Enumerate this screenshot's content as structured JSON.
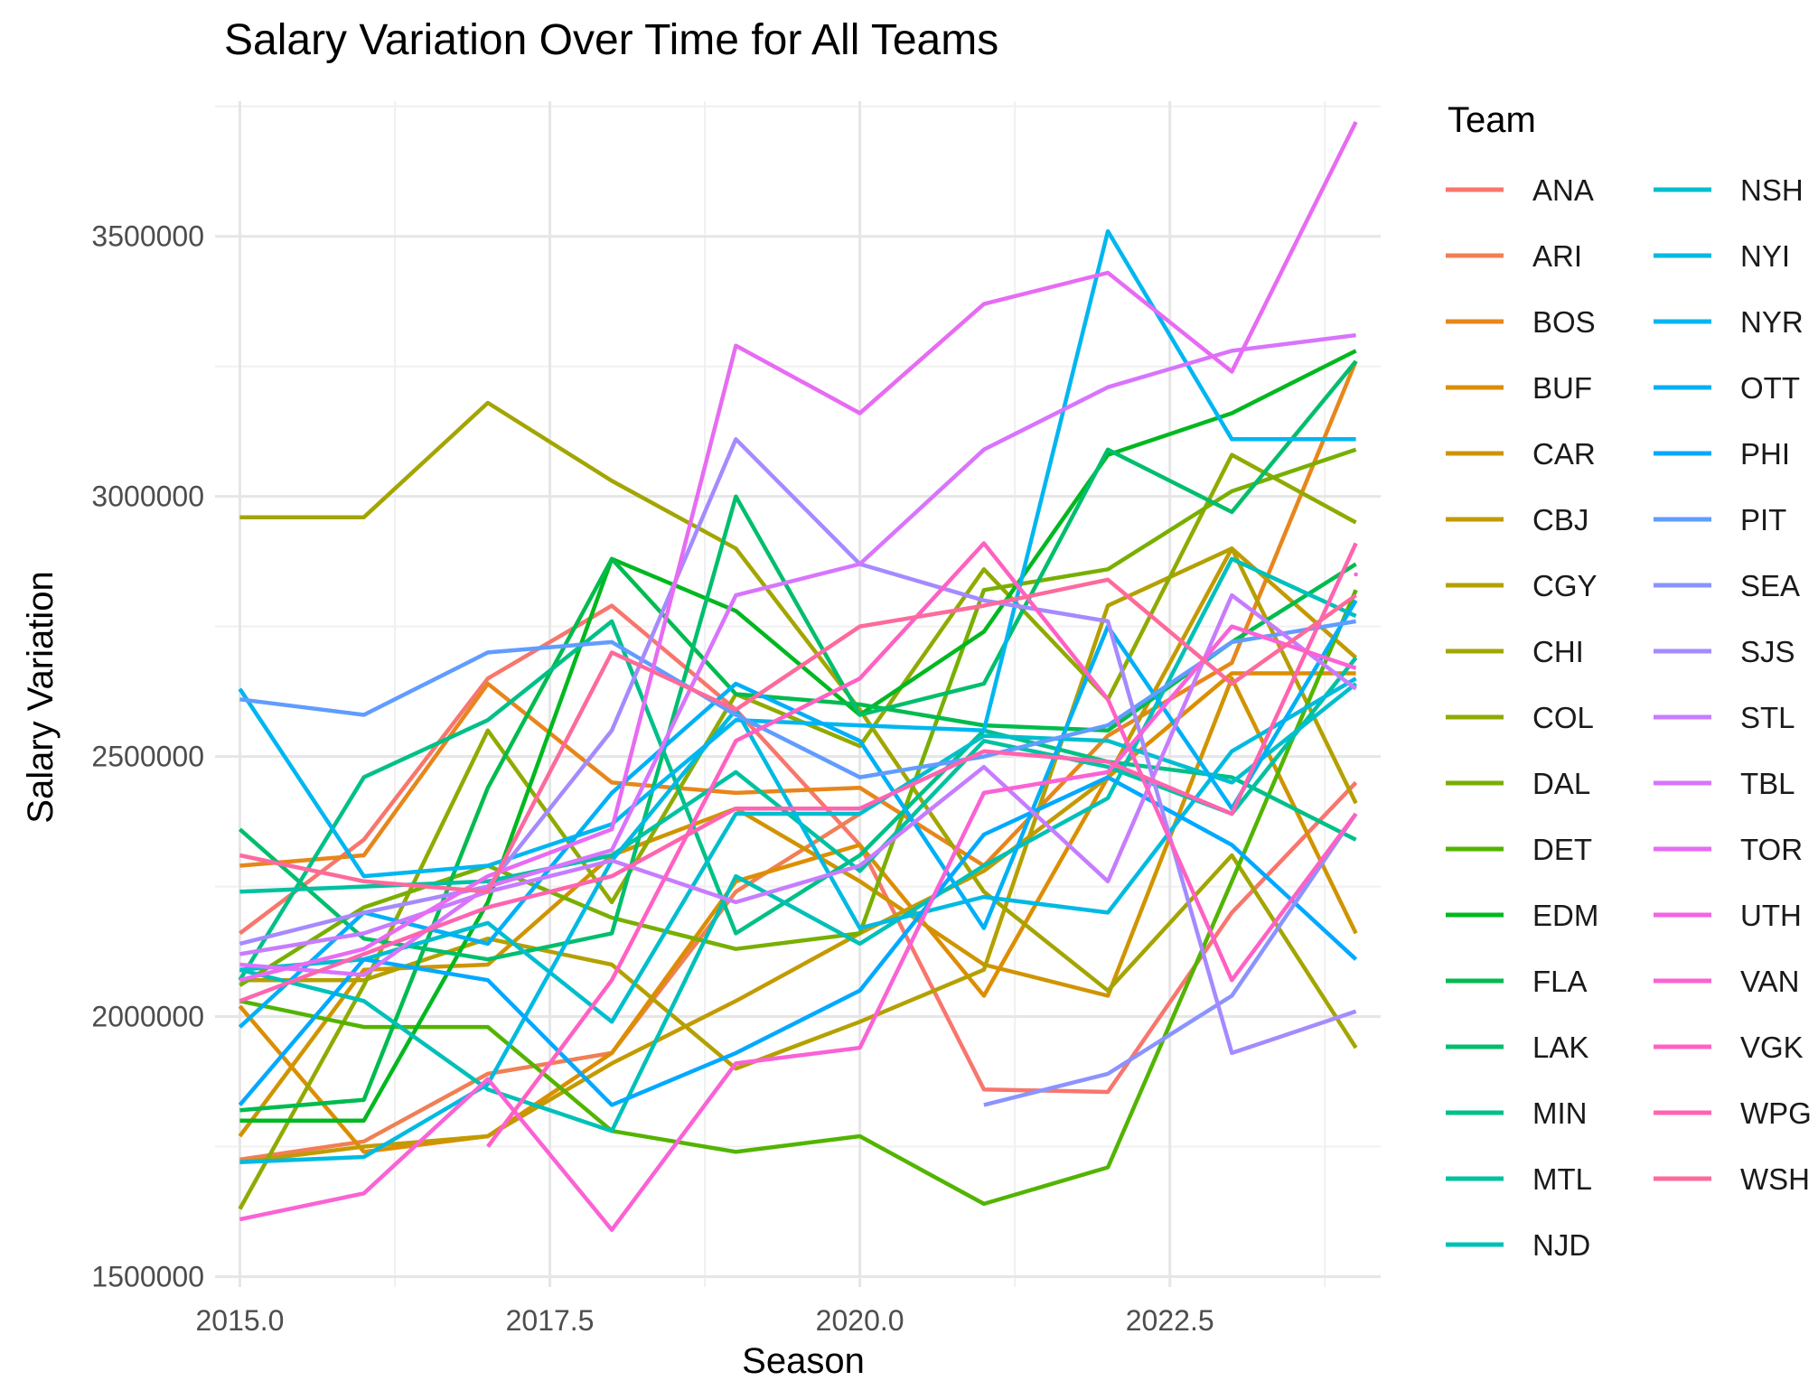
{
  "chart_data": {
    "type": "line",
    "title": "Salary Variation Over Time for All Teams",
    "xlabel": "Season",
    "ylabel": "Salary Variation",
    "xlim": [
      2014.8,
      2024.2
    ],
    "ylim": [
      1480000,
      3760000
    ],
    "x_ticks": [
      "2015.0",
      "2017.5",
      "2020.0",
      "2022.5"
    ],
    "x_tick_values": [
      2015.0,
      2017.5,
      2020.0,
      2022.5
    ],
    "y_ticks": [
      "1500000",
      "2000000",
      "2500000",
      "3000000",
      "3500000"
    ],
    "y_tick_values": [
      1500000,
      2000000,
      2500000,
      3000000,
      3500000
    ],
    "grid": true,
    "legend_title": "Team",
    "legend_position": "right",
    "x": [
      2015,
      2016,
      2017,
      2018,
      2019,
      2020,
      2021,
      2022,
      2023,
      2024
    ],
    "series": [
      {
        "name": "ANA",
        "color": "#F8766D",
        "values": [
          2160000,
          2340000,
          2650000,
          2790000,
          2590000,
          2330000,
          1860000,
          1855000,
          2200000,
          2450000
        ]
      },
      {
        "name": "ARI",
        "color": "#F07F54",
        "values": [
          1725000,
          1760000,
          1890000,
          1930000,
          2240000,
          2390000,
          null,
          null,
          null,
          null
        ]
      },
      {
        "name": "BOS",
        "color": "#E7861B",
        "values": [
          2290000,
          2310000,
          2640000,
          2450000,
          2430000,
          2440000,
          2290000,
          2540000,
          2680000,
          3260000
        ]
      },
      {
        "name": "BUF",
        "color": "#DC8E00",
        "values": [
          2020000,
          1740000,
          1770000,
          1930000,
          2260000,
          2330000,
          2040000,
          2460000,
          2660000,
          2660000
        ]
      },
      {
        "name": "CAR",
        "color": "#D09400",
        "values": [
          1770000,
          2090000,
          2100000,
          2310000,
          2400000,
          2260000,
          2100000,
          2040000,
          2650000,
          2160000
        ]
      },
      {
        "name": "CBJ",
        "color": "#C39A00",
        "values": [
          1720000,
          1750000,
          1770000,
          1910000,
          2030000,
          2160000,
          2280000,
          2460000,
          2900000,
          2690000
        ]
      },
      {
        "name": "CGY",
        "color": "#B4A000",
        "values": [
          2070000,
          2070000,
          2150000,
          2100000,
          1900000,
          1990000,
          2090000,
          2790000,
          2900000,
          2410000
        ]
      },
      {
        "name": "CHI",
        "color": "#A3A500",
        "values": [
          2960000,
          2960000,
          3180000,
          3030000,
          2900000,
          2590000,
          2240000,
          2050000,
          2310000,
          1940000
        ]
      },
      {
        "name": "COL",
        "color": "#90AA00",
        "values": [
          1630000,
          2060000,
          2550000,
          2220000,
          2620000,
          2520000,
          2860000,
          2610000,
          3080000,
          2950000
        ]
      },
      {
        "name": "DAL",
        "color": "#78AF00",
        "values": [
          2060000,
          2210000,
          2290000,
          2190000,
          2130000,
          2160000,
          2820000,
          2860000,
          3010000,
          3090000
        ]
      },
      {
        "name": "DET",
        "color": "#53B400",
        "values": [
          2030000,
          1980000,
          1980000,
          1780000,
          1740000,
          1770000,
          1640000,
          1710000,
          2260000,
          2820000
        ]
      },
      {
        "name": "EDM",
        "color": "#00B81F",
        "values": [
          1800000,
          1800000,
          2220000,
          2880000,
          2780000,
          2580000,
          2740000,
          3080000,
          3160000,
          3280000
        ]
      },
      {
        "name": "FLA",
        "color": "#00BB4E",
        "values": [
          1820000,
          1840000,
          2440000,
          2880000,
          2620000,
          2600000,
          2560000,
          2550000,
          2720000,
          2870000
        ]
      },
      {
        "name": "LAK",
        "color": "#00BE6C",
        "values": [
          2360000,
          2150000,
          2110000,
          2160000,
          3000000,
          2580000,
          2640000,
          3090000,
          2970000,
          3260000
        ]
      },
      {
        "name": "MIN",
        "color": "#00C087",
        "values": [
          2070000,
          2460000,
          2570000,
          2760000,
          2160000,
          2310000,
          2550000,
          2490000,
          2460000,
          2340000
        ]
      },
      {
        "name": "MTL",
        "color": "#00C1A0",
        "values": [
          2240000,
          2250000,
          2260000,
          2310000,
          2470000,
          2280000,
          2530000,
          2480000,
          2390000,
          2690000
        ]
      },
      {
        "name": "NJD",
        "color": "#00C0B8",
        "values": [
          2090000,
          2030000,
          1860000,
          1780000,
          2270000,
          2140000,
          2290000,
          2420000,
          2880000,
          2770000
        ]
      },
      {
        "name": "NSH",
        "color": "#00BECE",
        "values": [
          2090000,
          2110000,
          2180000,
          1990000,
          2390000,
          2390000,
          2540000,
          2530000,
          2450000,
          2640000
        ]
      },
      {
        "name": "NYI",
        "color": "#00BAE1",
        "values": [
          1720000,
          1730000,
          1870000,
          2300000,
          2590000,
          2170000,
          2230000,
          2200000,
          2510000,
          2650000
        ]
      },
      {
        "name": "NYR",
        "color": "#00B6F1",
        "values": [
          2630000,
          2270000,
          2290000,
          2370000,
          2570000,
          2560000,
          2550000,
          3510000,
          3110000,
          3110000
        ]
      },
      {
        "name": "OTT",
        "color": "#00B0F6",
        "values": [
          1980000,
          2200000,
          2140000,
          2430000,
          2640000,
          2530000,
          2170000,
          2750000,
          2400000,
          2800000
        ]
      },
      {
        "name": "PHI",
        "color": "#00A9FF",
        "values": [
          1830000,
          2110000,
          2070000,
          1830000,
          1930000,
          2050000,
          2350000,
          2460000,
          2330000,
          2110000
        ]
      },
      {
        "name": "PIT",
        "color": "#619CFF",
        "values": [
          2610000,
          2580000,
          2700000,
          2720000,
          2580000,
          2460000,
          2500000,
          2560000,
          2720000,
          2760000
        ]
      },
      {
        "name": "SEA",
        "color": "#8B93FF",
        "values": [
          null,
          null,
          null,
          null,
          null,
          null,
          1830000,
          1890000,
          2040000,
          2390000
        ]
      },
      {
        "name": "SJS",
        "color": "#A58AFF",
        "values": [
          2140000,
          2200000,
          2250000,
          2550000,
          3110000,
          2870000,
          2800000,
          2760000,
          1930000,
          2010000
        ]
      },
      {
        "name": "STL",
        "color": "#C77CFF",
        "values": [
          2120000,
          2160000,
          2240000,
          2300000,
          2220000,
          2290000,
          2480000,
          2260000,
          2810000,
          2630000
        ]
      },
      {
        "name": "TBL",
        "color": "#D874FD",
        "values": [
          2100000,
          2080000,
          2250000,
          2320000,
          2810000,
          2870000,
          3090000,
          3210000,
          3280000,
          3310000
        ]
      },
      {
        "name": "TOR",
        "color": "#E76BF3",
        "values": [
          2070000,
          2130000,
          2270000,
          2360000,
          3290000,
          3160000,
          3370000,
          3430000,
          3240000,
          3720000
        ]
      },
      {
        "name": "UTH",
        "color": "#F464E4",
        "values": [
          null,
          null,
          null,
          null,
          null,
          null,
          null,
          null,
          null,
          2850000
        ]
      },
      {
        "name": "VAN",
        "color": "#FA62D5",
        "values": [
          1610000,
          1660000,
          1880000,
          1590000,
          1910000,
          1940000,
          2430000,
          2470000,
          2750000,
          2670000
        ]
      },
      {
        "name": "VGK",
        "color": "#FF61C3",
        "values": [
          null,
          null,
          1750000,
          2070000,
          2530000,
          2650000,
          2910000,
          2610000,
          2070000,
          2390000
        ]
      },
      {
        "name": "WPG",
        "color": "#FF64B0",
        "values": [
          2030000,
          2120000,
          2210000,
          2270000,
          2400000,
          2400000,
          2510000,
          2490000,
          2390000,
          2910000
        ]
      },
      {
        "name": "WSH",
        "color": "#FD6A9C",
        "values": [
          2310000,
          2260000,
          2240000,
          2700000,
          2590000,
          2750000,
          2790000,
          2840000,
          2640000,
          2810000
        ]
      }
    ]
  }
}
